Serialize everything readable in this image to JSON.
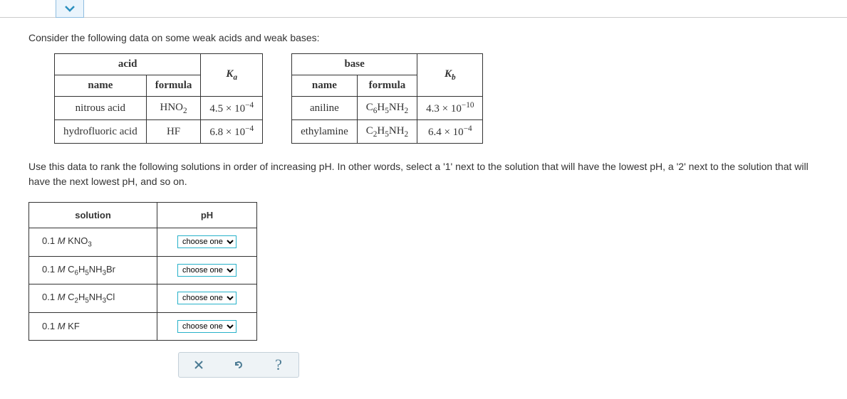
{
  "prompt": "Consider the following data on some weak acids and weak bases:",
  "acid_table": {
    "col1_header": "acid",
    "name_header": "name",
    "formula_header": "formula",
    "k_header_html": "K<sub>a</sub>",
    "rows": [
      {
        "name": "nitrous acid",
        "formula_html": "HNO<sub>2</sub>",
        "k_html": "4.5 × 10<sup>−4</sup>"
      },
      {
        "name": "hydrofluoric acid",
        "formula_html": "HF",
        "k_html": "6.8 × 10<sup>−4</sup>"
      }
    ]
  },
  "base_table": {
    "col1_header": "base",
    "name_header": "name",
    "formula_header": "formula",
    "k_header_html": "K<sub>b</sub>",
    "rows": [
      {
        "name": "aniline",
        "formula_html": "C<sub>6</sub>H<sub>5</sub>NH<sub>2</sub>",
        "k_html": "4.3 × 10<sup>−10</sup>"
      },
      {
        "name": "ethylamine",
        "formula_html": "C<sub>2</sub>H<sub>5</sub>NH<sub>2</sub>",
        "k_html": "6.4 × 10<sup>−4</sup>"
      }
    ]
  },
  "instruction": "Use this data to rank the following solutions in order of increasing pH. In other words, select a '1' next to the solution that will have the lowest pH, a '2' next to the solution that will have the next lowest pH, and so on.",
  "answer_table": {
    "solution_header": "solution",
    "ph_header": "pH",
    "select_placeholder": "choose one",
    "rows": [
      {
        "label_html": "0.1 <span class='italic-m'>M</span> KNO<sub>3</sub>"
      },
      {
        "label_html": "0.1 <span class='italic-m'>M</span> C<sub>6</sub>H<sub>5</sub>NH<sub>3</sub>Br"
      },
      {
        "label_html": "0.1 <span class='italic-m'>M</span> C<sub>2</sub>H<sub>5</sub>NH<sub>3</sub>Cl"
      },
      {
        "label_html": "0.1 <span class='italic-m'>M</span> KF"
      }
    ]
  },
  "colors": {
    "chevron": "#2b8fbf",
    "select_border": "#27b1c9",
    "action_bar_bg": "#eef3f6"
  }
}
